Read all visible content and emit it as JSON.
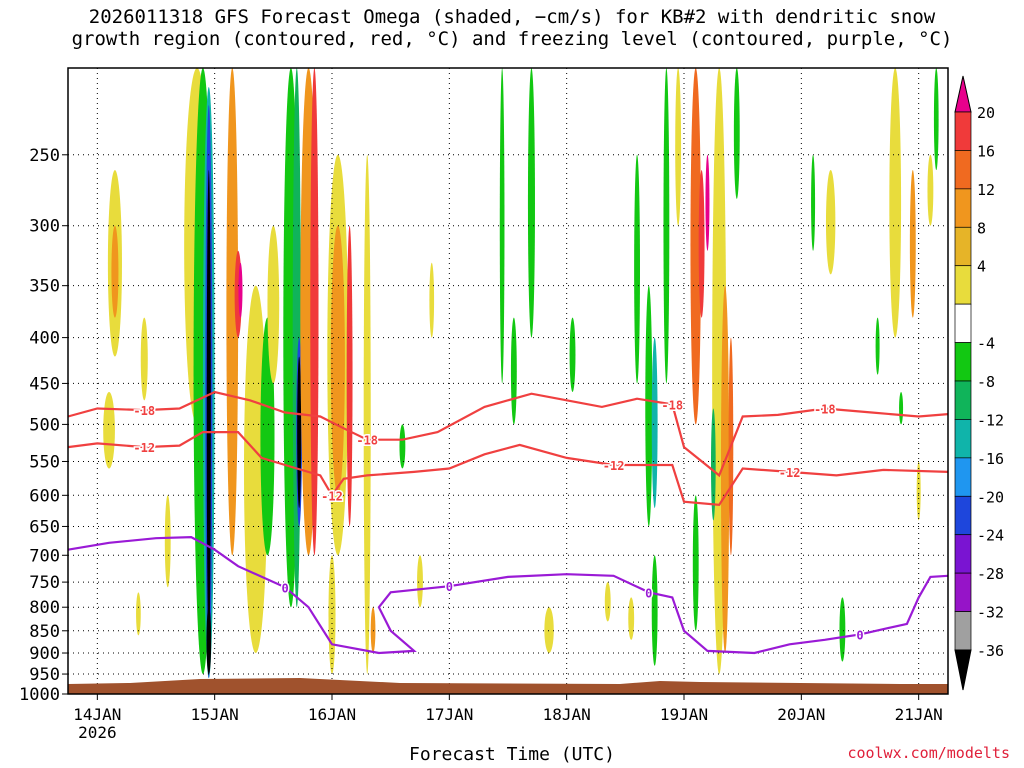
{
  "title": {
    "line1": "2026011318 GFS Forecast Omega (shaded, −cm/s) for KB#2 with dendritic snow",
    "line2": "growth region (contoured, red, °C) and freezing level (contoured, purple, °C)"
  },
  "footer": {
    "credit": "coolwx.com/modelts",
    "xlabel": "Forecast Time (UTC)"
  },
  "chart_data": {
    "type": "heatmap",
    "xlabel": "Forecast Time (UTC)",
    "ylabel": "",
    "y_scale": "log-pressure",
    "y_axis_inverted": true,
    "ylim": [
      1000,
      200
    ],
    "yticks": [
      250,
      300,
      350,
      400,
      450,
      500,
      550,
      600,
      650,
      700,
      750,
      800,
      850,
      900,
      950,
      1000
    ],
    "xlim_days": [
      13.75,
      21.25
    ],
    "xticks": [
      {
        "label": "14JAN",
        "sub": "2026",
        "day": 14
      },
      {
        "label": "15JAN",
        "sub": "",
        "day": 15
      },
      {
        "label": "16JAN",
        "sub": "",
        "day": 16
      },
      {
        "label": "17JAN",
        "sub": "",
        "day": 17
      },
      {
        "label": "18JAN",
        "sub": "",
        "day": 18
      },
      {
        "label": "19JAN",
        "sub": "",
        "day": 19
      },
      {
        "label": "20JAN",
        "sub": "",
        "day": 20
      },
      {
        "label": "21JAN",
        "sub": "",
        "day": 21
      }
    ],
    "grid": true,
    "colorbar": {
      "labels": [
        20,
        16,
        12,
        8,
        4,
        -4,
        -8,
        -12,
        -16,
        -20,
        -24,
        -28,
        -32,
        -36
      ],
      "colors": [
        "#e8008c",
        "#f03a3a",
        "#f06a20",
        "#f0961e",
        "#e6b428",
        "#e8dc3c",
        "#ffffff",
        "#12c812",
        "#10b45a",
        "#10b4aa",
        "#1f96f0",
        "#1e46dc",
        "#7a14d2",
        "#9614c8",
        "#a0a0a0",
        "#000000"
      ]
    },
    "shaded_features": [
      {
        "day": 14.95,
        "p_top": 200,
        "p_bot": 960,
        "omega": -36
      },
      {
        "day": 15.7,
        "p_top": 420,
        "p_bot": 620,
        "omega": -36
      },
      {
        "day": 15.25,
        "p_top": 200,
        "p_bot": 900,
        "omega": 16
      },
      {
        "day": 19.2,
        "p_top": 250,
        "p_bot": 340,
        "omega": 20
      },
      {
        "day": 19.3,
        "p_top": 200,
        "p_bot": 900,
        "omega": 12
      }
    ],
    "series": [
      {
        "name": "-18",
        "color": "#f04040",
        "points": [
          [
            13.75,
            490
          ],
          [
            14.0,
            480
          ],
          [
            14.4,
            482
          ],
          [
            14.7,
            480
          ],
          [
            15.0,
            460
          ],
          [
            15.3,
            470
          ],
          [
            15.6,
            485
          ],
          [
            15.9,
            490
          ],
          [
            16.1,
            505
          ],
          [
            16.3,
            520
          ],
          [
            16.6,
            520
          ],
          [
            16.9,
            510
          ],
          [
            17.3,
            478
          ],
          [
            17.7,
            462
          ],
          [
            18.0,
            470
          ],
          [
            18.3,
            478
          ],
          [
            18.6,
            468
          ],
          [
            18.9,
            475
          ],
          [
            19.0,
            530
          ],
          [
            19.3,
            570
          ],
          [
            19.5,
            490
          ],
          [
            19.8,
            488
          ],
          [
            20.2,
            480
          ],
          [
            20.6,
            485
          ],
          [
            21.0,
            490
          ],
          [
            21.25,
            487
          ]
        ]
      },
      {
        "name": "-12",
        "color": "#f04040",
        "points": [
          [
            13.75,
            530
          ],
          [
            14.0,
            525
          ],
          [
            14.4,
            530
          ],
          [
            14.7,
            528
          ],
          [
            14.9,
            510
          ],
          [
            15.2,
            510
          ],
          [
            15.4,
            545
          ],
          [
            15.7,
            560
          ],
          [
            15.9,
            570
          ],
          [
            16.0,
            600
          ],
          [
            16.1,
            575
          ],
          [
            16.3,
            570
          ],
          [
            16.7,
            565
          ],
          [
            17.0,
            560
          ],
          [
            17.3,
            540
          ],
          [
            17.6,
            527
          ],
          [
            18.0,
            545
          ],
          [
            18.4,
            555
          ],
          [
            18.9,
            555
          ],
          [
            19.0,
            610
          ],
          [
            19.3,
            615
          ],
          [
            19.5,
            560
          ],
          [
            19.9,
            565
          ],
          [
            20.3,
            570
          ],
          [
            20.7,
            562
          ],
          [
            21.25,
            565
          ]
        ]
      },
      {
        "name": "0",
        "color": "#9a1ad6",
        "points": [
          [
            13.75,
            690
          ],
          [
            14.1,
            678
          ],
          [
            14.5,
            670
          ],
          [
            14.8,
            668
          ],
          [
            15.0,
            690
          ],
          [
            15.2,
            720
          ],
          [
            15.6,
            760
          ],
          [
            15.8,
            800
          ],
          [
            16.0,
            880
          ],
          [
            16.4,
            900
          ],
          [
            16.7,
            895
          ],
          [
            16.5,
            850
          ],
          [
            16.4,
            800
          ],
          [
            16.5,
            770
          ],
          [
            17.0,
            758
          ],
          [
            17.5,
            740
          ],
          [
            18.0,
            735
          ],
          [
            18.4,
            738
          ],
          [
            18.7,
            770
          ],
          [
            18.9,
            780
          ],
          [
            19.0,
            850
          ],
          [
            19.2,
            895
          ],
          [
            19.6,
            900
          ],
          [
            19.9,
            880
          ],
          [
            20.2,
            870
          ],
          [
            20.5,
            858
          ],
          [
            20.9,
            835
          ],
          [
            21.0,
            780
          ],
          [
            21.1,
            740
          ],
          [
            21.25,
            738
          ]
        ]
      }
    ]
  }
}
